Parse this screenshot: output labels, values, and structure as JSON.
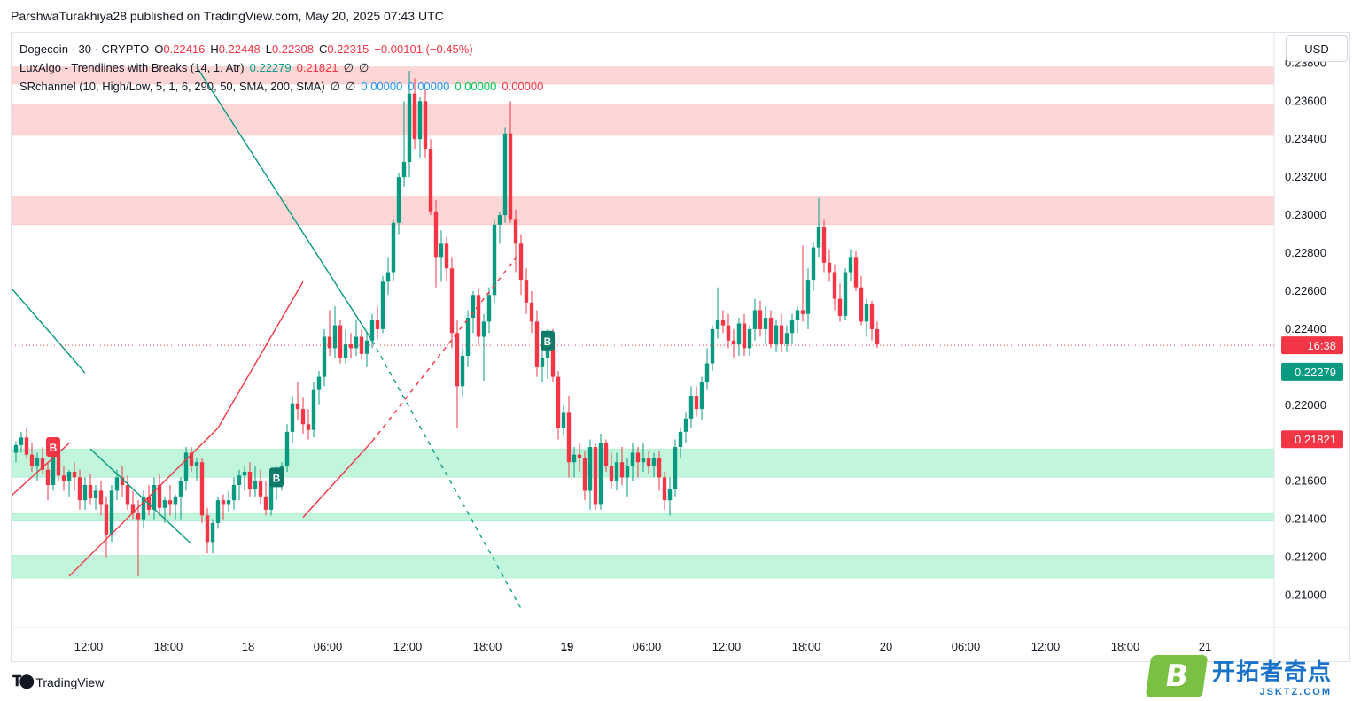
{
  "header": {
    "publisher": "ParshwaTurakhiya28 published on TradingView.com, May 20, 2025 07:43 UTC"
  },
  "legend": {
    "symbol": "Dogecoin · 30 · CRYPTO",
    "o_label": "O",
    "o": "0.22416",
    "h_label": "H",
    "h": "0.22448",
    "l_label": "L",
    "l": "0.22308",
    "c_label": "C",
    "c": "0.22315",
    "change": "−0.00101 (−0.45%)",
    "ind1": "LuxAlgo - Trendlines with Breaks (14, 1, Atr)",
    "ind1_v1": "0.22279",
    "ind1_v2": "0.21821",
    "ind1_sym1": "∅",
    "ind1_sym2": "∅",
    "ind2": "SRchannel (10, High/Low, 5, 1, 6, 290, 50, SMA, 200, SMA)",
    "ind2_sym1": "∅",
    "ind2_sym2": "∅",
    "ind2_v1": "0.00000",
    "ind2_v2": "0.00000",
    "ind2_v3": "0.00000",
    "ind2_v4": "0.00000"
  },
  "currency_button": "USD",
  "footer": {
    "brand": "TradingView"
  },
  "watermark": {
    "letter": "B",
    "cn": "开拓者奇点",
    "en": "JSKTZ.COM"
  },
  "colors": {
    "up": "#089981",
    "down": "#f23645",
    "resistance_zone": "#ffd6d6",
    "support_zone": "#c1f5dc"
  },
  "chart_data": {
    "type": "candlestick",
    "x_ticks": [
      "12:00",
      "18:00",
      "18",
      "06:00",
      "12:00",
      "18:00",
      "19",
      "06:00",
      "12:00",
      "18:00",
      "20",
      "06:00",
      "12:00",
      "18:00",
      "21"
    ],
    "y_ticks": [
      "0.23800",
      "0.23600",
      "0.23400",
      "0.23200",
      "0.23000",
      "0.22800",
      "0.22600",
      "0.22400",
      "0.22200",
      "0.22000",
      "0.21800",
      "0.21600",
      "0.21400",
      "0.21200",
      "0.21000"
    ],
    "ylim": [
      0.2083,
      0.2396
    ],
    "price_labels": [
      {
        "text": "16:38",
        "value": 0.22315,
        "color": "#f23645"
      },
      {
        "text": "0.22279",
        "value": 0.22279,
        "color": "#089981"
      },
      {
        "text": "0.21821",
        "value": 0.21821,
        "color": "#f23645"
      }
    ],
    "current_price": 0.22315,
    "resistance_zones": [
      [
        0.2369,
        0.2378
      ],
      [
        0.2342,
        0.2358
      ],
      [
        0.2295,
        0.231
      ]
    ],
    "support_zones": [
      [
        0.2162,
        0.2177
      ],
      [
        0.2139,
        0.2143
      ],
      [
        0.2109,
        0.2121
      ]
    ],
    "signals": [
      {
        "label": "B",
        "type": "sell",
        "bar": 7,
        "price": 0.2178
      },
      {
        "label": "B",
        "type": "buy",
        "bar": 49,
        "price": 0.2162
      },
      {
        "label": "B",
        "type": "buy",
        "bar": 100,
        "price": 0.2234
      }
    ],
    "candles": [
      [
        0.2175,
        0.2181,
        0.217,
        0.2179
      ],
      [
        0.2179,
        0.2186,
        0.2175,
        0.2183
      ],
      [
        0.2183,
        0.2188,
        0.2172,
        0.2174
      ],
      [
        0.2174,
        0.218,
        0.2165,
        0.2168
      ],
      [
        0.2168,
        0.2175,
        0.216,
        0.2172
      ],
      [
        0.2172,
        0.2178,
        0.2164,
        0.2166
      ],
      [
        0.2166,
        0.217,
        0.215,
        0.2158
      ],
      [
        0.2158,
        0.2178,
        0.2155,
        0.2174
      ],
      [
        0.2174,
        0.218,
        0.216,
        0.2163
      ],
      [
        0.2163,
        0.2168,
        0.2155,
        0.216
      ],
      [
        0.216,
        0.2166,
        0.2152,
        0.2165
      ],
      [
        0.2165,
        0.217,
        0.2155,
        0.2162
      ],
      [
        0.2162,
        0.2166,
        0.2145,
        0.215
      ],
      [
        0.215,
        0.2162,
        0.2145,
        0.2158
      ],
      [
        0.2158,
        0.2164,
        0.2148,
        0.2151
      ],
      [
        0.2151,
        0.2158,
        0.2145,
        0.2155
      ],
      [
        0.2155,
        0.216,
        0.2142,
        0.2148
      ],
      [
        0.2148,
        0.2152,
        0.212,
        0.2132
      ],
      [
        0.2132,
        0.2158,
        0.2128,
        0.2155
      ],
      [
        0.2155,
        0.2166,
        0.215,
        0.2162
      ],
      [
        0.2162,
        0.2168,
        0.2152,
        0.2158
      ],
      [
        0.2158,
        0.2163,
        0.2145,
        0.2148
      ],
      [
        0.2148,
        0.2155,
        0.214,
        0.2143
      ],
      [
        0.2143,
        0.215,
        0.211,
        0.214
      ],
      [
        0.214,
        0.2155,
        0.2135,
        0.2152
      ],
      [
        0.2152,
        0.2158,
        0.2142,
        0.2145
      ],
      [
        0.2145,
        0.2162,
        0.214,
        0.2158
      ],
      [
        0.2158,
        0.2164,
        0.2142,
        0.2146
      ],
      [
        0.2146,
        0.2152,
        0.2138,
        0.215
      ],
      [
        0.215,
        0.2158,
        0.2142,
        0.2148
      ],
      [
        0.2148,
        0.2153,
        0.214,
        0.2152
      ],
      [
        0.2152,
        0.2162,
        0.214,
        0.216
      ],
      [
        0.216,
        0.2178,
        0.2155,
        0.2175
      ],
      [
        0.2175,
        0.2178,
        0.2165,
        0.2168
      ],
      [
        0.2168,
        0.2172,
        0.216,
        0.217
      ],
      [
        0.217,
        0.2172,
        0.2138,
        0.2142
      ],
      [
        0.2142,
        0.2146,
        0.2122,
        0.2128
      ],
      [
        0.2128,
        0.214,
        0.2122,
        0.2138
      ],
      [
        0.2138,
        0.2152,
        0.2135,
        0.215
      ],
      [
        0.215,
        0.2153,
        0.214,
        0.2148
      ],
      [
        0.2148,
        0.2155,
        0.2144,
        0.215
      ],
      [
        0.215,
        0.2162,
        0.2145,
        0.2158
      ],
      [
        0.2158,
        0.2166,
        0.215,
        0.2163
      ],
      [
        0.2163,
        0.2168,
        0.2155,
        0.2165
      ],
      [
        0.2165,
        0.217,
        0.2152,
        0.2156
      ],
      [
        0.2156,
        0.2168,
        0.2152,
        0.216
      ],
      [
        0.216,
        0.2166,
        0.2148,
        0.2152
      ],
      [
        0.2152,
        0.216,
        0.2142,
        0.2145
      ],
      [
        0.2145,
        0.2166,
        0.2142,
        0.216
      ],
      [
        0.216,
        0.2168,
        0.215,
        0.2164
      ],
      [
        0.2164,
        0.217,
        0.2155,
        0.2168
      ],
      [
        0.2168,
        0.219,
        0.2165,
        0.2186
      ],
      [
        0.2186,
        0.2205,
        0.218,
        0.2201
      ],
      [
        0.2201,
        0.2212,
        0.2192,
        0.2198
      ],
      [
        0.2198,
        0.2204,
        0.2185,
        0.219
      ],
      [
        0.219,
        0.2198,
        0.2182,
        0.2187
      ],
      [
        0.2187,
        0.2212,
        0.2183,
        0.2208
      ],
      [
        0.2208,
        0.2218,
        0.22,
        0.2215
      ],
      [
        0.2215,
        0.224,
        0.221,
        0.2236
      ],
      [
        0.2236,
        0.225,
        0.2226,
        0.223
      ],
      [
        0.223,
        0.2252,
        0.2225,
        0.2242
      ],
      [
        0.2242,
        0.2245,
        0.2222,
        0.2225
      ],
      [
        0.2225,
        0.224,
        0.2222,
        0.2232
      ],
      [
        0.2232,
        0.2238,
        0.2225,
        0.223
      ],
      [
        0.223,
        0.2245,
        0.2226,
        0.2236
      ],
      [
        0.2236,
        0.224,
        0.2224,
        0.2227
      ],
      [
        0.2227,
        0.2238,
        0.222,
        0.2234
      ],
      [
        0.2234,
        0.2248,
        0.223,
        0.2245
      ],
      [
        0.2245,
        0.2252,
        0.2235,
        0.224
      ],
      [
        0.224,
        0.2268,
        0.2238,
        0.2265
      ],
      [
        0.2265,
        0.2278,
        0.2258,
        0.227
      ],
      [
        0.227,
        0.2298,
        0.2265,
        0.2296
      ],
      [
        0.2296,
        0.2322,
        0.229,
        0.232
      ],
      [
        0.232,
        0.236,
        0.2315,
        0.2328
      ],
      [
        0.2328,
        0.2376,
        0.232,
        0.2364
      ],
      [
        0.2364,
        0.2372,
        0.2335,
        0.234
      ],
      [
        0.234,
        0.2362,
        0.233,
        0.236
      ],
      [
        0.236,
        0.2366,
        0.233,
        0.2335
      ],
      [
        0.2335,
        0.234,
        0.23,
        0.2302
      ],
      [
        0.2302,
        0.2308,
        0.2262,
        0.2278
      ],
      [
        0.2278,
        0.2292,
        0.2265,
        0.2285
      ],
      [
        0.2285,
        0.2288,
        0.2265,
        0.2272
      ],
      [
        0.2272,
        0.2278,
        0.223,
        0.2238
      ],
      [
        0.2238,
        0.2245,
        0.2188,
        0.221
      ],
      [
        0.221,
        0.223,
        0.2204,
        0.2226
      ],
      [
        0.2226,
        0.225,
        0.222,
        0.2246
      ],
      [
        0.2246,
        0.226,
        0.2238,
        0.2258
      ],
      [
        0.2258,
        0.2262,
        0.2232,
        0.2236
      ],
      [
        0.2236,
        0.2248,
        0.2213,
        0.2244
      ],
      [
        0.2244,
        0.2262,
        0.2238,
        0.2258
      ],
      [
        0.2258,
        0.2298,
        0.2254,
        0.2295
      ],
      [
        0.2295,
        0.2302,
        0.2285,
        0.23
      ],
      [
        0.23,
        0.2346,
        0.2296,
        0.2343
      ],
      [
        0.2343,
        0.236,
        0.2296,
        0.2298
      ],
      [
        0.2298,
        0.2303,
        0.227,
        0.2285
      ],
      [
        0.2285,
        0.229,
        0.2258,
        0.2266
      ],
      [
        0.2266,
        0.2272,
        0.2248,
        0.2254
      ],
      [
        0.2254,
        0.226,
        0.2238,
        0.2244
      ],
      [
        0.2244,
        0.225,
        0.2215,
        0.222
      ],
      [
        0.222,
        0.2232,
        0.2212,
        0.2225
      ],
      [
        0.2225,
        0.224,
        0.2214,
        0.2235
      ],
      [
        0.2235,
        0.224,
        0.2212,
        0.2215
      ],
      [
        0.2215,
        0.2218,
        0.2182,
        0.2188
      ],
      [
        0.2188,
        0.22,
        0.2184,
        0.2196
      ],
      [
        0.2196,
        0.2205,
        0.2162,
        0.217
      ],
      [
        0.217,
        0.2178,
        0.2162,
        0.2174
      ],
      [
        0.2174,
        0.218,
        0.2165,
        0.2172
      ],
      [
        0.2172,
        0.2176,
        0.215,
        0.2155
      ],
      [
        0.2155,
        0.2182,
        0.2145,
        0.2178
      ],
      [
        0.2178,
        0.218,
        0.2145,
        0.2148
      ],
      [
        0.2148,
        0.2185,
        0.2145,
        0.218
      ],
      [
        0.218,
        0.2182,
        0.2165,
        0.2168
      ],
      [
        0.2168,
        0.2175,
        0.2156,
        0.216
      ],
      [
        0.216,
        0.2175,
        0.2155,
        0.217
      ],
      [
        0.217,
        0.2178,
        0.2158,
        0.2162
      ],
      [
        0.2162,
        0.2172,
        0.2152,
        0.2168
      ],
      [
        0.2168,
        0.218,
        0.216,
        0.2175
      ],
      [
        0.2175,
        0.2178,
        0.2162,
        0.217
      ],
      [
        0.217,
        0.218,
        0.2165,
        0.2172
      ],
      [
        0.2172,
        0.2176,
        0.2164,
        0.2168
      ],
      [
        0.2168,
        0.2175,
        0.2162,
        0.2172
      ],
      [
        0.2172,
        0.2176,
        0.2155,
        0.2162
      ],
      [
        0.2162,
        0.2165,
        0.2145,
        0.215
      ],
      [
        0.215,
        0.2162,
        0.2142,
        0.2156
      ],
      [
        0.2156,
        0.2182,
        0.2152,
        0.2178
      ],
      [
        0.2178,
        0.2188,
        0.2172,
        0.2186
      ],
      [
        0.2186,
        0.2196,
        0.218,
        0.2193
      ],
      [
        0.2193,
        0.221,
        0.2188,
        0.2205
      ],
      [
        0.2205,
        0.221,
        0.2194,
        0.2198
      ],
      [
        0.2198,
        0.2215,
        0.2192,
        0.2212
      ],
      [
        0.2212,
        0.223,
        0.2208,
        0.2222
      ],
      [
        0.2222,
        0.2242,
        0.2218,
        0.224
      ],
      [
        0.224,
        0.2262,
        0.2235,
        0.2245
      ],
      [
        0.2245,
        0.225,
        0.2238,
        0.2242
      ],
      [
        0.2242,
        0.2248,
        0.223,
        0.2234
      ],
      [
        0.2234,
        0.224,
        0.2225,
        0.2232
      ],
      [
        0.2232,
        0.2246,
        0.2226,
        0.2243
      ],
      [
        0.2243,
        0.2248,
        0.2226,
        0.223
      ],
      [
        0.223,
        0.2242,
        0.2226,
        0.224
      ],
      [
        0.224,
        0.2256,
        0.2234,
        0.225
      ],
      [
        0.225,
        0.2255,
        0.2236,
        0.224
      ],
      [
        0.224,
        0.2252,
        0.2232,
        0.2246
      ],
      [
        0.2246,
        0.225,
        0.223,
        0.2232
      ],
      [
        0.2232,
        0.2245,
        0.2228,
        0.2242
      ],
      [
        0.2242,
        0.2248,
        0.2228,
        0.2232
      ],
      [
        0.2232,
        0.2242,
        0.2228,
        0.2238
      ],
      [
        0.2238,
        0.2248,
        0.2232,
        0.2245
      ],
      [
        0.2245,
        0.2252,
        0.2238,
        0.225
      ],
      [
        0.225,
        0.2284,
        0.2244,
        0.2248
      ],
      [
        0.2248,
        0.2272,
        0.224,
        0.2266
      ],
      [
        0.2266,
        0.2286,
        0.226,
        0.2283
      ],
      [
        0.2283,
        0.2309,
        0.2278,
        0.2294
      ],
      [
        0.2294,
        0.2298,
        0.227,
        0.2275
      ],
      [
        0.2275,
        0.2282,
        0.2265,
        0.227
      ],
      [
        0.227,
        0.2274,
        0.225,
        0.2256
      ],
      [
        0.2256,
        0.2264,
        0.2244,
        0.2247
      ],
      [
        0.2247,
        0.2272,
        0.2245,
        0.227
      ],
      [
        0.227,
        0.2282,
        0.2265,
        0.2278
      ],
      [
        0.2278,
        0.2281,
        0.226,
        0.2262
      ],
      [
        0.2262,
        0.2268,
        0.2242,
        0.2244
      ],
      [
        0.2244,
        0.2256,
        0.2236,
        0.2253
      ],
      [
        0.2253,
        0.2255,
        0.2234,
        0.224
      ],
      [
        0.224,
        0.2244,
        0.223,
        0.2232
      ]
    ],
    "trendlines": [
      {
        "color": "#089981",
        "dashed": false,
        "p1": [
          -1,
          0.2262
        ],
        "p2": [
          13,
          0.2217
        ]
      },
      {
        "color": "#089981",
        "dashed": false,
        "p1": [
          14,
          0.2177
        ],
        "p2": [
          33,
          0.2127
        ]
      },
      {
        "color": "#089981",
        "dashed": false,
        "p1": [
          34,
          0.2378
        ],
        "p2": [
          67,
          0.2234
        ]
      },
      {
        "color": "#089981",
        "dashed": true,
        "p1": [
          67,
          0.2234
        ],
        "p2": [
          95,
          0.2093
        ]
      },
      {
        "color": "#f23645",
        "dashed": false,
        "p1": [
          -1,
          0.2152
        ],
        "p2": [
          10,
          0.218
        ]
      },
      {
        "color": "#f23645",
        "dashed": false,
        "p1": [
          10,
          0.211
        ],
        "p2": [
          38,
          0.2188
        ]
      },
      {
        "color": "#f23645",
        "dashed": false,
        "p1": [
          38,
          0.2188
        ],
        "p2": [
          54,
          0.2265
        ]
      },
      {
        "color": "#f23645",
        "dashed": false,
        "p1": [
          54,
          0.2141
        ],
        "p2": [
          67,
          0.2181
        ]
      },
      {
        "color": "#f23645",
        "dashed": true,
        "p1": [
          67,
          0.2181
        ],
        "p2": [
          95,
          0.2281
        ]
      }
    ]
  }
}
